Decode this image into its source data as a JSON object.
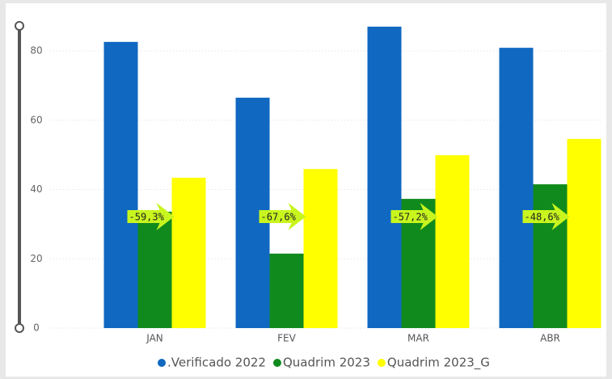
{
  "chart_data": {
    "type": "bar",
    "categories": [
      "JAN",
      "FEV",
      "MAR",
      "ABR"
    ],
    "series": [
      {
        "name": ".Verificado 2022",
        "color": "#1068c1",
        "values": [
          82.6,
          66.5,
          87.0,
          80.9
        ]
      },
      {
        "name": "Quadrim 2023",
        "color": "#118a1d",
        "values": [
          33.6,
          21.5,
          37.3,
          41.5
        ]
      },
      {
        "name": "Quadrim 2023_G",
        "color": "#ffff00",
        "values": [
          43.4,
          45.9,
          49.9,
          54.6
        ]
      }
    ],
    "annotations": [
      "-59,3%",
      "-67,6%",
      "-57,2%",
      "-48,6%"
    ],
    "ylim": [
      0,
      90
    ],
    "yticks": [
      0,
      20,
      40,
      60,
      80
    ],
    "grid": true,
    "legend": "bottom"
  }
}
